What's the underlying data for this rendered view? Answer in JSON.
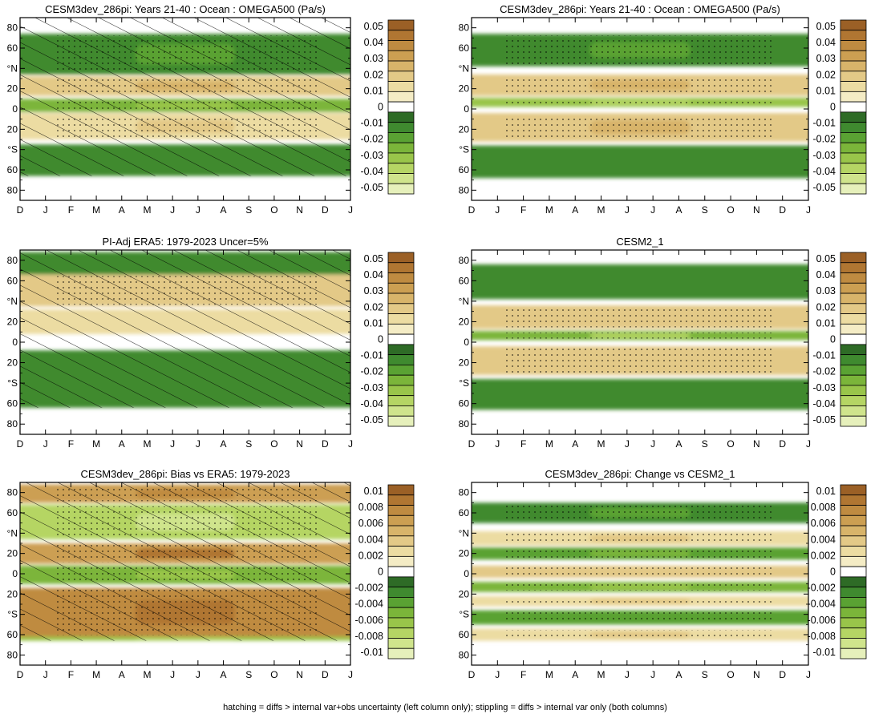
{
  "footer": "hatching = diffs > internal var+obs uncertainty (left column only); stippling = diffs > internal var only (both columns)",
  "colors": {
    "neg": [
      "#2e6b26",
      "#3f8a2f",
      "#5aa233",
      "#7bb53a",
      "#99c54a",
      "#b5d564",
      "#cfe48c",
      "#e6f0bb"
    ],
    "zero": "#ffffff",
    "pos": [
      "#f4ecc5",
      "#ecdca2",
      "#e3c987",
      "#d8b46a",
      "#cc9f52",
      "#bf8b41",
      "#b07632",
      "#9b6026"
    ]
  },
  "chart_data": [
    {
      "type": "heatmap",
      "panel": "a",
      "title": "CESM3dev_286pi: Years 21-40 : Ocean : OMEGA500 (Pa/s)",
      "x_ticks": [
        "D",
        "J",
        "F",
        "M",
        "A",
        "M",
        "J",
        "J",
        "A",
        "S",
        "O",
        "N",
        "D",
        "J"
      ],
      "y_ticks": [
        "80",
        "60",
        "°N",
        "20",
        "0",
        "20",
        "°S",
        "60",
        "80"
      ],
      "y_range": [
        90,
        -90
      ],
      "colorbar_labels": [
        "0.05",
        "0.04",
        "0.03",
        "0.02",
        "0.01",
        "0",
        "-0.01",
        "-0.02",
        "-0.03",
        "-0.04",
        "-0.05"
      ],
      "hatching": true,
      "bands": [
        {
          "lat_north": 74,
          "lat_south": 34,
          "value": -0.018
        },
        {
          "lat_north": 32,
          "lat_south": 13,
          "value": 0.022
        },
        {
          "lat_north": 10,
          "lat_south": -3,
          "value": -0.03
        },
        {
          "lat_north": -4,
          "lat_south": -30,
          "value": 0.016
        },
        {
          "lat_north": -35,
          "lat_south": -66,
          "value": -0.012
        }
      ]
    },
    {
      "type": "heatmap",
      "panel": "b",
      "title": "CESM3dev_286pi: Years 21-40 : Ocean : OMEGA500 (Pa/s)",
      "x_ticks": [
        "D",
        "J",
        "F",
        "M",
        "A",
        "M",
        "J",
        "J",
        "A",
        "S",
        "O",
        "N",
        "D",
        "J"
      ],
      "y_ticks": [
        "80",
        "60",
        "°N",
        "20",
        "0",
        "20",
        "°S",
        "60",
        "80"
      ],
      "y_range": [
        90,
        -90
      ],
      "colorbar_labels": [
        "0.05",
        "0.04",
        "0.03",
        "0.02",
        "0.01",
        "0",
        "-0.01",
        "-0.02",
        "-0.03",
        "-0.04",
        "-0.05"
      ],
      "hatching": false,
      "bands": [
        {
          "lat_north": 74,
          "lat_south": 42,
          "value": -0.015
        },
        {
          "lat_north": 34,
          "lat_south": 13,
          "value": 0.022
        },
        {
          "lat_north": 11,
          "lat_south": 2,
          "value": -0.042
        },
        {
          "lat_north": -4,
          "lat_south": -32,
          "value": 0.022
        },
        {
          "lat_north": -36,
          "lat_south": -68,
          "value": -0.012
        }
      ]
    },
    {
      "type": "heatmap",
      "panel": "c",
      "title": "PI-Adj ERA5: 1979-2023 Uncer=5%",
      "x_ticks": [
        "D",
        "J",
        "F",
        "M",
        "A",
        "M",
        "J",
        "J",
        "A",
        "S",
        "O",
        "N",
        "D",
        "J"
      ],
      "y_ticks": [
        "80",
        "60",
        "°N",
        "20",
        "0",
        "20",
        "°S",
        "60",
        "80"
      ],
      "y_range": [
        90,
        -90
      ],
      "colorbar_labels": [
        "0.05",
        "0.04",
        "0.03",
        "0.02",
        "0.01",
        "0",
        "-0.01",
        "-0.02",
        "-0.03",
        "-0.04",
        "-0.05"
      ],
      "hatching": true,
      "bands": [
        {
          "lat_north": 88,
          "lat_south": 66,
          "value": -0.012
        },
        {
          "lat_north": 66,
          "lat_south": 35,
          "value": 0.02
        },
        {
          "lat_north": 32,
          "lat_south": 8,
          "value": 0.01
        },
        {
          "lat_north": -8,
          "lat_south": -64,
          "value": -0.012
        }
      ]
    },
    {
      "type": "heatmap",
      "panel": "d",
      "title": "CESM2_1",
      "x_ticks": [
        "D",
        "J",
        "F",
        "M",
        "A",
        "M",
        "J",
        "J",
        "A",
        "S",
        "O",
        "N",
        "D",
        "J"
      ],
      "y_ticks": [
        "80",
        "60",
        "°N",
        "20",
        "0",
        "20",
        "°S",
        "60",
        "80"
      ],
      "y_range": [
        90,
        -90
      ],
      "colorbar_labels": [
        "0.05",
        "0.04",
        "0.03",
        "0.02",
        "0.01",
        "0",
        "-0.01",
        "-0.02",
        "-0.03",
        "-0.04",
        "-0.05"
      ],
      "hatching": false,
      "bands": [
        {
          "lat_north": 76,
          "lat_south": 42,
          "value": -0.014
        },
        {
          "lat_north": 36,
          "lat_south": 13,
          "value": 0.02
        },
        {
          "lat_north": 11,
          "lat_south": 2,
          "value": -0.038
        },
        {
          "lat_north": -4,
          "lat_south": -32,
          "value": 0.02
        },
        {
          "lat_north": -36,
          "lat_south": -66,
          "value": -0.014
        }
      ]
    },
    {
      "type": "heatmap",
      "panel": "e",
      "title": "CESM3dev_286pi: Bias vs ERA5: 1979-2023",
      "x_ticks": [
        "D",
        "J",
        "F",
        "M",
        "A",
        "M",
        "J",
        "J",
        "A",
        "S",
        "O",
        "N",
        "D",
        "J"
      ],
      "y_ticks": [
        "80",
        "60",
        "°N",
        "20",
        "0",
        "20",
        "°S",
        "60",
        "80"
      ],
      "y_range": [
        90,
        -90
      ],
      "colorbar_labels": [
        "0.01",
        "0.008",
        "0.006",
        "0.004",
        "0.002",
        "0",
        "-0.002",
        "-0.004",
        "-0.006",
        "-0.008",
        "-0.01"
      ],
      "hatching": true,
      "bands": [
        {
          "lat_north": 88,
          "lat_south": 70,
          "value": 0.008
        },
        {
          "lat_north": 68,
          "lat_south": 34,
          "value": -0.01
        },
        {
          "lat_north": 30,
          "lat_south": 10,
          "value": 0.009
        },
        {
          "lat_north": 8,
          "lat_south": -10,
          "value": -0.006
        },
        {
          "lat_north": -14,
          "lat_south": -62,
          "value": 0.01
        },
        {
          "lat_north": -62,
          "lat_south": -66,
          "value": -0.008
        }
      ]
    },
    {
      "type": "heatmap",
      "panel": "f",
      "title": "CESM3dev_286pi: Change vs CESM2_1",
      "x_ticks": [
        "D",
        "J",
        "F",
        "M",
        "A",
        "M",
        "J",
        "J",
        "A",
        "S",
        "O",
        "N",
        "D",
        "J"
      ],
      "y_ticks": [
        "80",
        "60",
        "°N",
        "20",
        "0",
        "20",
        "°S",
        "60",
        "80"
      ],
      "y_range": [
        90,
        -90
      ],
      "colorbar_labels": [
        "0.01",
        "0.008",
        "0.006",
        "0.004",
        "0.002",
        "0",
        "-0.002",
        "-0.004",
        "-0.006",
        "-0.008",
        "-0.01"
      ],
      "hatching": false,
      "bands": [
        {
          "lat_north": 70,
          "lat_south": 50,
          "value": -0.003
        },
        {
          "lat_north": 42,
          "lat_south": 28,
          "value": 0.003
        },
        {
          "lat_north": 26,
          "lat_south": 14,
          "value": -0.005
        },
        {
          "lat_north": 8,
          "lat_south": -4,
          "value": 0.004
        },
        {
          "lat_north": -8,
          "lat_south": -18,
          "value": -0.006
        },
        {
          "lat_north": -22,
          "lat_south": -32,
          "value": 0.003
        },
        {
          "lat_north": -36,
          "lat_south": -50,
          "value": -0.004
        },
        {
          "lat_north": -54,
          "lat_south": -66,
          "value": 0.003
        }
      ]
    }
  ]
}
